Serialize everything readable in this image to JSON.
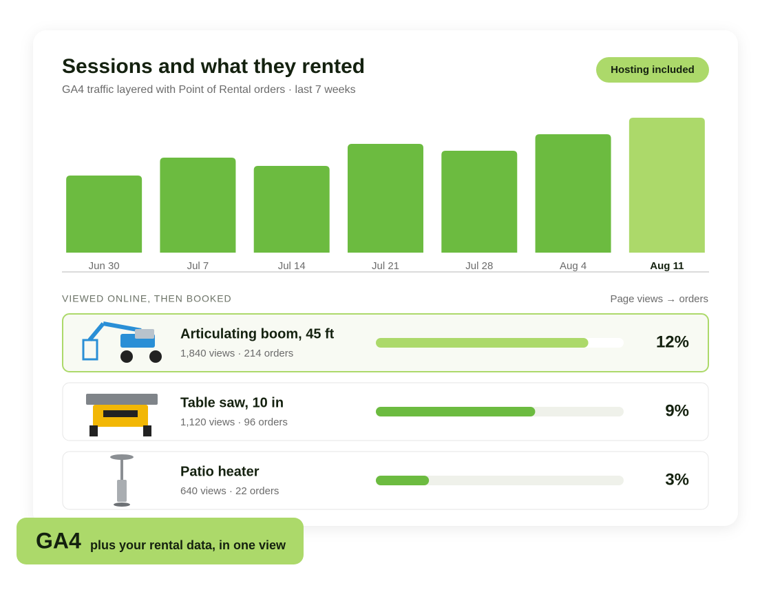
{
  "header": {
    "title": "Sessions and what they rented",
    "subtitle": "GA4 traffic layered with Point of Rental orders · last 7 weeks",
    "badge": "Hosting included"
  },
  "chart_data": {
    "type": "bar",
    "categories": [
      "Jun 30",
      "Jul 7",
      "Jul 14",
      "Jul 21",
      "Jul 28",
      "Aug 4",
      "Aug 11"
    ],
    "values": [
      112,
      138,
      126,
      158,
      148,
      172,
      196
    ],
    "color": "#6cbb40",
    "highlight_color": "#acd96a",
    "highlight_index": 6,
    "ylim": [
      0,
      200
    ]
  },
  "products": {
    "heading": "VIEWED ONLINE, THEN BOOKED",
    "legend": "Page views → orders",
    "names": [
      "Articulating boom, 45 ft",
      "Table saw, 10 in",
      "Patio heater"
    ],
    "details": [
      "1,840 views · 214 orders",
      "1,120 views · 96 orders",
      "640 views · 22 orders"
    ],
    "values": [
      12,
      9,
      3
    ],
    "value_labels": [
      "12%",
      "9%",
      "3%"
    ],
    "xlim": [
      0,
      14
    ],
    "highlight_index": 0,
    "color": "#6cbb40",
    "highlight_color": "#acd96a"
  },
  "footer": {
    "badge_title": "GA4",
    "badge_text": "plus your rental data, in one view"
  }
}
